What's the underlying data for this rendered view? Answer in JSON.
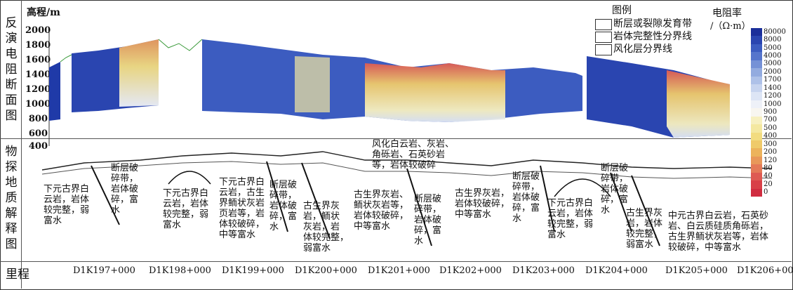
{
  "left_labels": {
    "section1": "反\n演\n电\n阻\n断\n面\n图",
    "section2": "物\n探\n地\n质\n解\n释\n图",
    "mileage": "里程"
  },
  "axis": {
    "title": "高程/m",
    "ticks": [
      "2000",
      "1800",
      "1600",
      "1400",
      "1200",
      "1000",
      "800",
      "600",
      "400"
    ]
  },
  "legend": {
    "title": "图例",
    "items": [
      "断层或裂隙发育带",
      "岩体完整性分界线",
      "风化层分界线"
    ]
  },
  "colorbar": {
    "title": "电阻率",
    "unit": "/（Ω·m）",
    "labels": [
      "80000",
      "8000",
      "5000",
      "4000",
      "3000",
      "2000",
      "1700",
      "1400",
      "1200",
      "1000",
      "900",
      "700",
      "500",
      "400",
      "300",
      "200",
      "120",
      "80",
      "40",
      "20",
      "0"
    ],
    "colors": [
      "#1b2f9a",
      "#2a45b0",
      "#3c5cc0",
      "#5675cc",
      "#7591d6",
      "#93abdf",
      "#aec1e8",
      "#c7d4ef",
      "#dde5f5",
      "#eef1f8",
      "#f8f6f0",
      "#f7f0c0",
      "#f4e8a0",
      "#f2dc80",
      "#efca6a",
      "#ecb35c",
      "#e8985a",
      "#e47a58",
      "#de5a52",
      "#d84048",
      "#d02c40"
    ]
  },
  "mileage": [
    "D1K197+000",
    "D1K198+000",
    "D1K199+000",
    "D1K200+000",
    "D1K201+000",
    "D1K202+000",
    "D1K203+000",
    "D1K204+000",
    "D1K205+000",
    "D1K206+000"
  ],
  "annotations": {
    "a1": "下元古界白\n云岩，岩体\n较完整，弱\n富水",
    "a2": "断层破\n碎带，\n岩体破\n碎，富\n水",
    "a3": "下元古界白\n云岩，岩体\n较完整，弱\n富水",
    "a4": "下元古界白\n云岩，古生\n界鲕状灰岩\n页岩等，岩\n体较破碎，\n中等富水",
    "a5": "断层破\n碎带，\n岩体破\n碎，富\n水",
    "a6": "古生界灰\n岩，鲕状\n灰岩，岩\n体较完整，\n弱富水",
    "a7": "风化白云岩、灰岩、\n角砾岩、石英砂岩\n等，岩体较破碎",
    "a8": "古生界灰岩、\n鲕状灰岩等，\n岩体较破碎，\n中等富水",
    "a9": "断层破\n碎带，\n岩体破\n碎，富\n水",
    "a10": "古生界灰岩，\n岩体较破碎，\n中等富水",
    "a11": "断层破\n碎带，\n岩体破\n碎，富\n水",
    "a12": "下元古界白\n云岩，岩体\n较完整，弱\n富水",
    "a13": "断层破\n碎带，\n岩体破\n碎，富\n水",
    "a14": "古生界灰\n岩，岩体\n较完整，\n弱富水",
    "a15": "中元古界白云岩，石英砂\n岩、白云质硅质角砾岩，\n古生界鲕状灰岩等，岩体\n较破碎，中等富水"
  }
}
